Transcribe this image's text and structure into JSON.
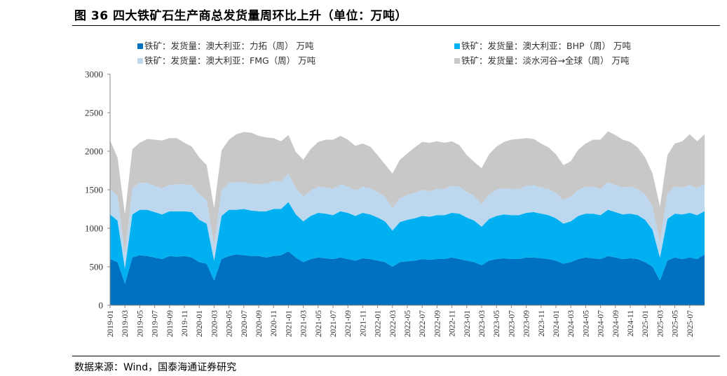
{
  "figure": {
    "title": "图 36  四大铁矿石生产商总发货量周环比上升（单位：万吨）",
    "source": "数据来源：Wind，国泰海通证券研究"
  },
  "chart_data": {
    "type": "area",
    "stacked": true,
    "title": "图 36  四大铁矿石生产商总发货量周环比上升（单位：万吨）",
    "xlabel": "",
    "ylabel": "",
    "ylim": [
      0,
      3000
    ],
    "yticks": [
      0,
      500,
      1000,
      1500,
      2000,
      2500,
      3000
    ],
    "grid": false,
    "legend_position": "top",
    "x_tick_labels": [
      "2019-01",
      "2019-03",
      "2019-05",
      "2019-07",
      "2019-09",
      "2019-11",
      "2020-01",
      "2020-03",
      "2020-05",
      "2020-07",
      "2020-09",
      "2020-11",
      "2021-01",
      "2021-03",
      "2021-05",
      "2021-07",
      "2021-09",
      "2021-11",
      "2022-01",
      "2022-03",
      "2022-05",
      "2022-07",
      "2022-09",
      "2022-11",
      "2023-01",
      "2023-03",
      "2023-05",
      "2023-07",
      "2023-09",
      "2023-11",
      "2024-01",
      "2024-03",
      "2024-05",
      "2024-07",
      "2024-09",
      "2024-11",
      "2025-01",
      "2025-03",
      "2025-05",
      "2025-07"
    ],
    "x": [
      "2019-01",
      "2019-02",
      "2019-03",
      "2019-04",
      "2019-05",
      "2019-06",
      "2019-07",
      "2019-08",
      "2019-09",
      "2019-10",
      "2019-11",
      "2019-12",
      "2020-01",
      "2020-02",
      "2020-03",
      "2020-04",
      "2020-05",
      "2020-06",
      "2020-07",
      "2020-08",
      "2020-09",
      "2020-10",
      "2020-11",
      "2020-12",
      "2021-01",
      "2021-02",
      "2021-03",
      "2021-04",
      "2021-05",
      "2021-06",
      "2021-07",
      "2021-08",
      "2021-09",
      "2021-10",
      "2021-11",
      "2021-12",
      "2022-01",
      "2022-02",
      "2022-03",
      "2022-04",
      "2022-05",
      "2022-06",
      "2022-07",
      "2022-08",
      "2022-09",
      "2022-10",
      "2022-11",
      "2022-12",
      "2023-01",
      "2023-02",
      "2023-03",
      "2023-04",
      "2023-05",
      "2023-06",
      "2023-07",
      "2023-08",
      "2023-09",
      "2023-10",
      "2023-11",
      "2023-12",
      "2024-01",
      "2024-02",
      "2024-03",
      "2024-04",
      "2024-05",
      "2024-06",
      "2024-07",
      "2024-08",
      "2024-09",
      "2024-10",
      "2024-11",
      "2024-12",
      "2025-01",
      "2025-02",
      "2025-03",
      "2025-04",
      "2025-05",
      "2025-06",
      "2025-07",
      "2025-08",
      "2025-09"
    ],
    "series": [
      {
        "name": "铁矿：发货量：澳大利亚：力拓（周） 万吨",
        "color": "#0070C0",
        "values": [
          600,
          560,
          280,
          620,
          650,
          640,
          620,
          600,
          640,
          630,
          640,
          620,
          560,
          540,
          320,
          600,
          640,
          660,
          650,
          640,
          640,
          620,
          640,
          650,
          700,
          620,
          560,
          600,
          620,
          610,
          600,
          620,
          600,
          580,
          610,
          600,
          580,
          560,
          500,
          560,
          570,
          580,
          600,
          590,
          600,
          600,
          620,
          600,
          580,
          560,
          520,
          580,
          600,
          610,
          600,
          600,
          620,
          620,
          610,
          600,
          580,
          540,
          560,
          600,
          620,
          610,
          600,
          640,
          620,
          600,
          610,
          600,
          560,
          500,
          320,
          580,
          620,
          600,
          620,
          600,
          660
        ]
      },
      {
        "name": "铁矿：发货量：澳大利亚：BHP（周） 万吨",
        "color": "#00B0F0",
        "values": [
          580,
          540,
          200,
          560,
          590,
          600,
          590,
          580,
          580,
          590,
          580,
          590,
          550,
          520,
          260,
          560,
          600,
          580,
          600,
          590,
          580,
          600,
          610,
          600,
          640,
          560,
          530,
          560,
          580,
          580,
          570,
          600,
          600,
          580,
          590,
          580,
          560,
          530,
          470,
          520,
          540,
          550,
          560,
          560,
          570,
          570,
          580,
          590,
          560,
          540,
          500,
          540,
          560,
          570,
          570,
          570,
          580,
          590,
          580,
          570,
          550,
          520,
          530,
          560,
          570,
          580,
          570,
          600,
          590,
          580,
          580,
          570,
          550,
          480,
          300,
          540,
          570,
          580,
          580,
          570,
          560
        ]
      },
      {
        "name": "铁矿：发货量：澳大利亚：FMG（周） 万吨",
        "color": "#BDD7EE",
        "values": [
          330,
          320,
          180,
          340,
          350,
          350,
          340,
          340,
          340,
          350,
          350,
          350,
          330,
          310,
          200,
          330,
          350,
          360,
          350,
          350,
          350,
          360,
          360,
          360,
          370,
          340,
          320,
          330,
          340,
          340,
          340,
          350,
          340,
          330,
          340,
          340,
          330,
          320,
          290,
          310,
          320,
          330,
          340,
          330,
          340,
          340,
          350,
          350,
          330,
          320,
          290,
          320,
          340,
          340,
          340,
          340,
          350,
          350,
          340,
          340,
          330,
          310,
          320,
          340,
          350,
          350,
          340,
          360,
          350,
          350,
          350,
          340,
          330,
          300,
          200,
          330,
          350,
          350,
          360,
          350,
          360
        ]
      },
      {
        "name": "铁矿：发货量：淡水河谷→全球（周） 万吨",
        "color": "#C8C8C8",
        "values": [
          630,
          500,
          520,
          510,
          520,
          570,
          600,
          620,
          610,
          600,
          540,
          500,
          480,
          450,
          480,
          520,
          560,
          620,
          650,
          660,
          630,
          600,
          560,
          520,
          500,
          470,
          480,
          540,
          580,
          620,
          640,
          630,
          610,
          580,
          560,
          540,
          480,
          420,
          450,
          500,
          540,
          590,
          620,
          630,
          620,
          600,
          580,
          540,
          480,
          440,
          470,
          520,
          560,
          600,
          640,
          650,
          620,
          600,
          570,
          540,
          500,
          450,
          460,
          520,
          560,
          610,
          640,
          660,
          650,
          620,
          580,
          540,
          480,
          430,
          460,
          500,
          560,
          600,
          660,
          610,
          640
        ]
      }
    ]
  }
}
